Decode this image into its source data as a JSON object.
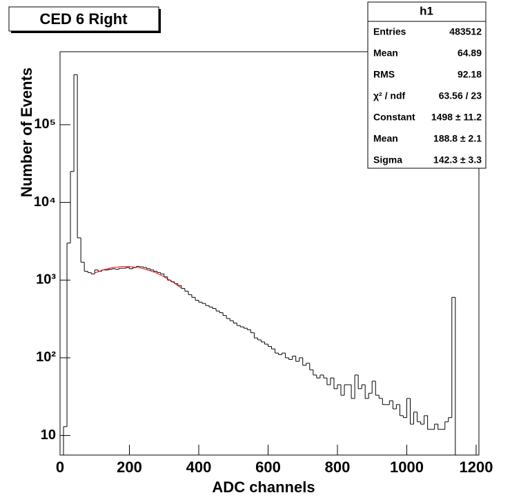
{
  "chart_data": {
    "type": "histogram",
    "title": "CED 6 Right",
    "xlabel": "ADC channels",
    "ylabel": "Number of Events",
    "log_y": true,
    "color": "#000000",
    "bins": [
      10,
      20,
      30,
      40,
      50,
      60,
      70,
      80,
      90,
      100,
      110,
      120,
      130,
      140,
      150,
      160,
      170,
      180,
      190,
      200,
      210,
      220,
      230,
      240,
      250,
      260,
      270,
      280,
      290,
      300,
      310,
      320,
      330,
      340,
      350,
      360,
      370,
      380,
      390,
      400,
      410,
      420,
      430,
      440,
      450,
      460,
      470,
      480,
      490,
      500,
      510,
      520,
      530,
      540,
      550,
      560,
      570,
      580,
      590,
      600,
      610,
      620,
      630,
      640,
      650,
      660,
      670,
      680,
      690,
      700,
      710,
      720,
      730,
      740,
      750,
      760,
      770,
      780,
      790,
      800,
      810,
      820,
      830,
      840,
      850,
      860,
      870,
      880,
      890,
      900,
      910,
      920,
      930,
      940,
      950,
      960,
      970,
      980,
      990,
      1000,
      1010,
      1020,
      1030,
      1040,
      1050,
      1060,
      1070,
      1080,
      1090,
      1100,
      1110,
      1120,
      1130,
      1140
    ],
    "counts": [
      13,
      3000,
      25000,
      440000,
      3500,
      1700,
      1300,
      1250,
      1200,
      1350,
      1300,
      1350,
      1350,
      1380,
      1400,
      1380,
      1420,
      1420,
      1450,
      1400,
      1450,
      1500,
      1480,
      1450,
      1400,
      1350,
      1300,
      1250,
      1200,
      1100,
      1000,
      950,
      900,
      850,
      780,
      720,
      650,
      600,
      550,
      520,
      500,
      470,
      450,
      430,
      400,
      380,
      350,
      320,
      300,
      280,
      260,
      250,
      240,
      230,
      210,
      180,
      170,
      160,
      150,
      140,
      130,
      115,
      110,
      115,
      100,
      95,
      105,
      90,
      100,
      80,
      85,
      70,
      60,
      55,
      60,
      55,
      45,
      55,
      40,
      45,
      33,
      45,
      45,
      30,
      60,
      40,
      45,
      30,
      35,
      50,
      33,
      30,
      25,
      25,
      28,
      22,
      25,
      18,
      17,
      30,
      14,
      20,
      15,
      14,
      18,
      12,
      12,
      14,
      12,
      12,
      15,
      17,
      600
    ],
    "fit": {
      "color": "#ff0000",
      "x": [
        100,
        125,
        150,
        175,
        200,
        225,
        250,
        275,
        300,
        325,
        350
      ],
      "values": [
        1233,
        1355,
        1443,
        1491,
        1493,
        1450,
        1366,
        1248,
        1104,
        948,
        788
      ]
    },
    "xlim": [
      0,
      1208
    ],
    "xticks": [
      0,
      200,
      400,
      600,
      800,
      1000,
      1200
    ],
    "ylim": [
      5.6,
      870000
    ],
    "yticks": [
      {
        "value": 10,
        "label": "10"
      },
      {
        "value": 100,
        "label": "10²"
      },
      {
        "value": 1000,
        "label": "10³"
      },
      {
        "value": 10000,
        "label": "10⁴"
      },
      {
        "value": 100000,
        "label": "10⁵"
      }
    ],
    "stats": {
      "title": "h1",
      "rows": [
        [
          "Entries",
          "483512"
        ],
        [
          "Mean",
          "64.89"
        ],
        [
          "RMS",
          "92.18"
        ],
        [
          "χ² / ndf",
          "63.56 / 23"
        ],
        [
          "Constant",
          "1498 ± 11.2"
        ],
        [
          "Mean",
          "188.8 ± 2.1"
        ],
        [
          "Sigma",
          "142.3 ± 3.3"
        ]
      ]
    }
  }
}
